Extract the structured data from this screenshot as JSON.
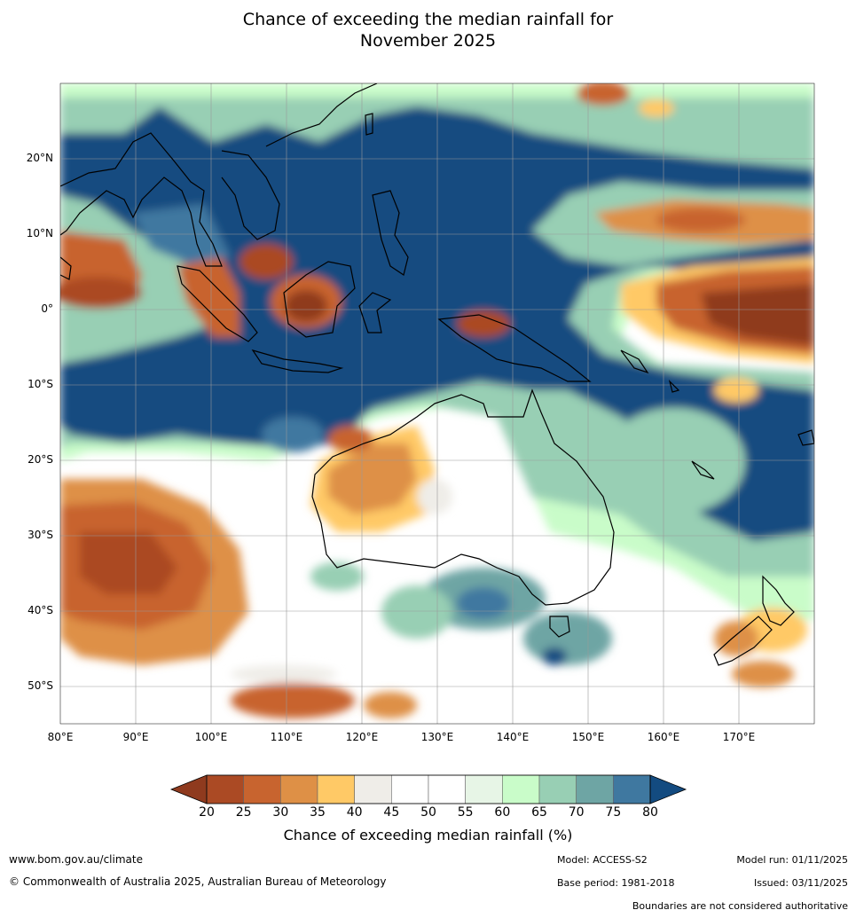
{
  "header": {
    "title_line1": "Chance of exceeding the median rainfall for",
    "title_line2": "November 2025"
  },
  "axes": {
    "lat_labels": [
      "20°N",
      "10°N",
      "0°",
      "10°S",
      "20°S",
      "30°S",
      "40°S",
      "50°S"
    ],
    "lon_labels": [
      "80°E",
      "90°E",
      "100°E",
      "110°E",
      "120°E",
      "130°E",
      "140°E",
      "150°E",
      "160°E",
      "170°E"
    ],
    "lon_range": [
      80,
      180
    ],
    "lat_range": [
      -55,
      30
    ]
  },
  "legend": {
    "title": "Chance of exceeding median rainfall (%)",
    "ticks": [
      "20",
      "25",
      "30",
      "35",
      "40",
      "45",
      "50",
      "55",
      "60",
      "65",
      "70",
      "75",
      "80"
    ],
    "colors": [
      "#8f3a1e",
      "#ab4a24",
      "#c8642f",
      "#de9046",
      "#ffc966",
      "#efede8",
      "#ffffff",
      "#ffffff",
      "#e7f5e6",
      "#c9fcc9",
      "#98cfb4",
      "#6ea5a4",
      "#3f78a0",
      "#134b80"
    ]
  },
  "footer": {
    "url": "www.bom.gov.au/climate",
    "copyright": "© Commonwealth of Australia 2025, Australian Bureau of Meteorology",
    "model": "Model: ACCESS-S2",
    "base_period": "Base period: 1981-2018",
    "model_run": "Model run: 01/11/2025",
    "issued": "Issued: 03/11/2025",
    "disclaimer": "Boundaries are not considered authoritative"
  }
}
